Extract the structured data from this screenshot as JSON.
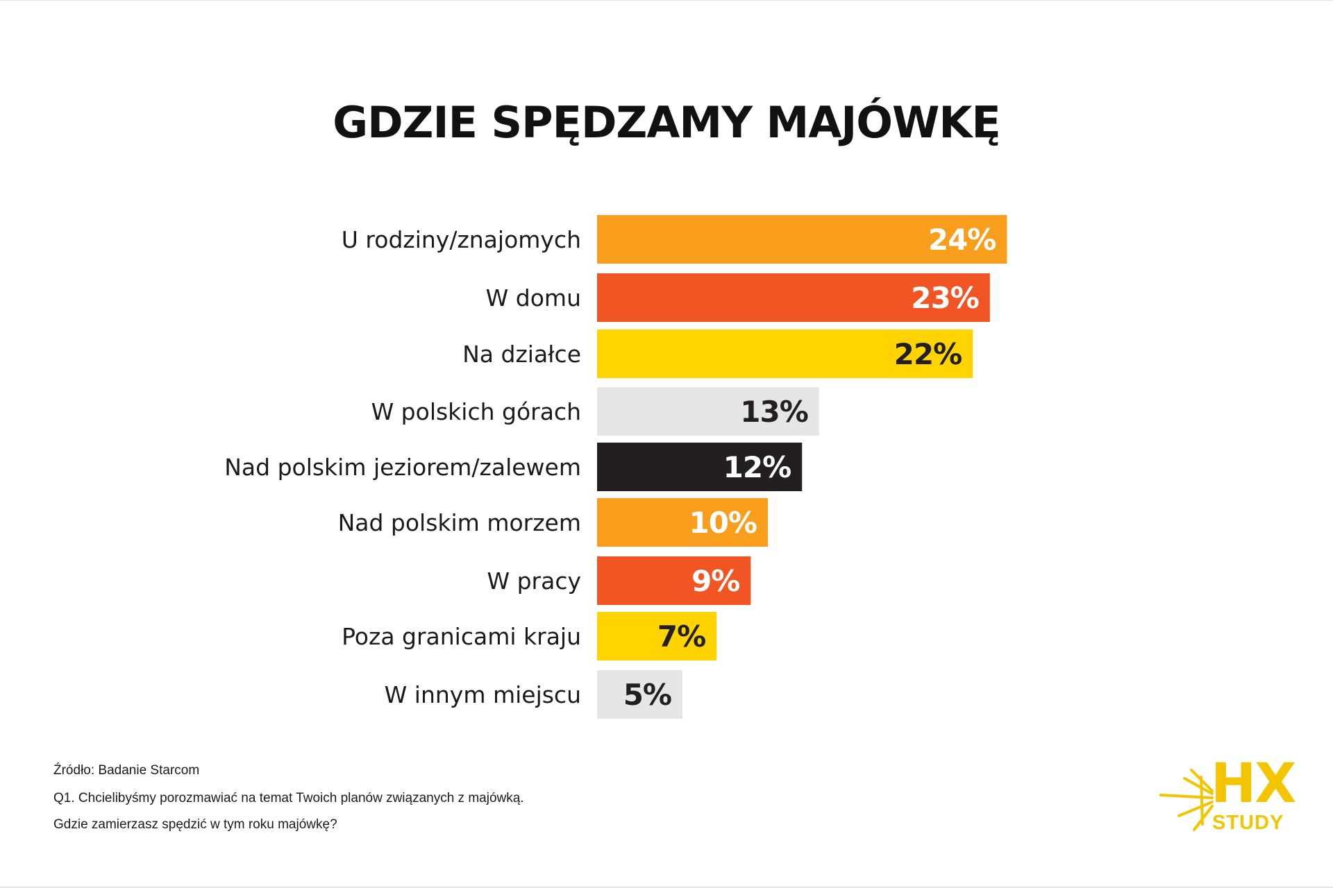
{
  "title": "GDZIE SPĘDZAMY MAJÓWKĘ",
  "chart_data": {
    "type": "bar",
    "orientation": "horizontal",
    "title": "GDZIE SPĘDZAMY MAJÓWKĘ",
    "xlabel": "",
    "ylabel": "",
    "xlim": [
      0,
      24
    ],
    "grid": false,
    "categories": [
      "U rodziny/znajomych",
      "W domu",
      "Na działce",
      "W polskich górach",
      "Nad polskim jeziorem/zalewem",
      "Nad polskim morzem",
      "W pracy",
      "Poza granicami kraju",
      "W innym miejscu"
    ],
    "values": [
      24,
      23,
      22,
      13,
      12,
      10,
      9,
      7,
      5
    ],
    "value_labels": [
      "24%",
      "23%",
      "22%",
      "13%",
      "12%",
      "10%",
      "9%",
      "7%",
      "5%"
    ],
    "bar_colors": [
      "#f99d1c",
      "#f15524",
      "#ffd400",
      "#e6e6e6",
      "#231f20",
      "#f99d1c",
      "#f15524",
      "#ffd400",
      "#e6e6e6"
    ],
    "label_colors": [
      "#ffffff",
      "#ffffff",
      "#231f20",
      "#231f20",
      "#ffffff",
      "#ffffff",
      "#ffffff",
      "#231f20",
      "#231f20"
    ]
  },
  "footnotes": {
    "source": "Źródło: Badanie Starcom",
    "question_line1": "Q1. Chcielibyśmy porozmawiać na temat Twoich planów związanych z majówką.",
    "question_line2": "Gdzie zamierzasz spędzić w tym roku majówkę?"
  },
  "logo": {
    "text_main": "HX",
    "text_sub": "STUDY",
    "color": "#f2c500"
  }
}
